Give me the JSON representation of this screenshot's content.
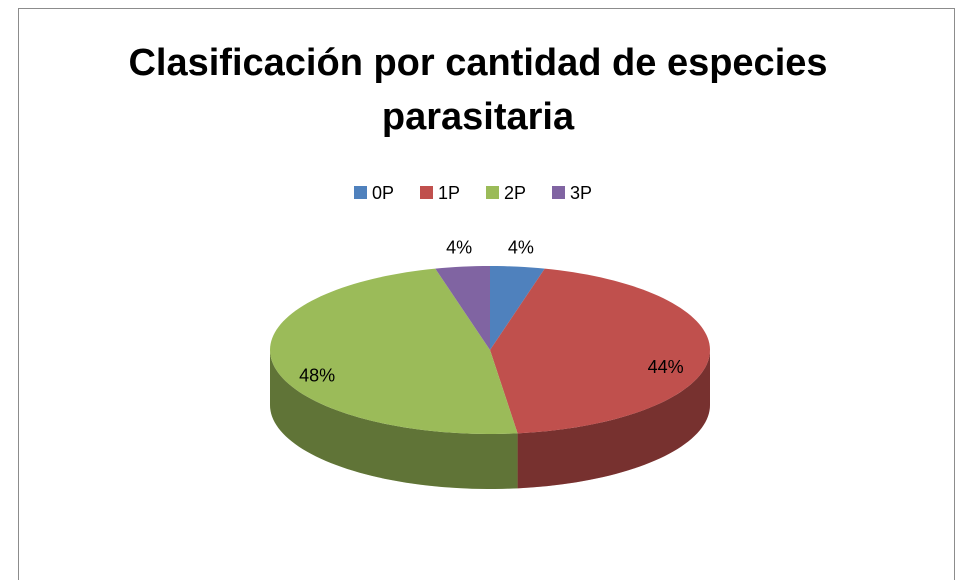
{
  "chart_data": {
    "type": "pie",
    "title": "Clasificación por cantidad de especies parasitaria",
    "categories": [
      "0P",
      "1P",
      "2P",
      "3P"
    ],
    "values": [
      4,
      44,
      48,
      4
    ],
    "value_labels": [
      "4%",
      "44%",
      "48%",
      "4%"
    ],
    "colors": [
      "#4f81bd",
      "#c0504d",
      "#9bbb59",
      "#8064a2"
    ],
    "legend": "top"
  }
}
